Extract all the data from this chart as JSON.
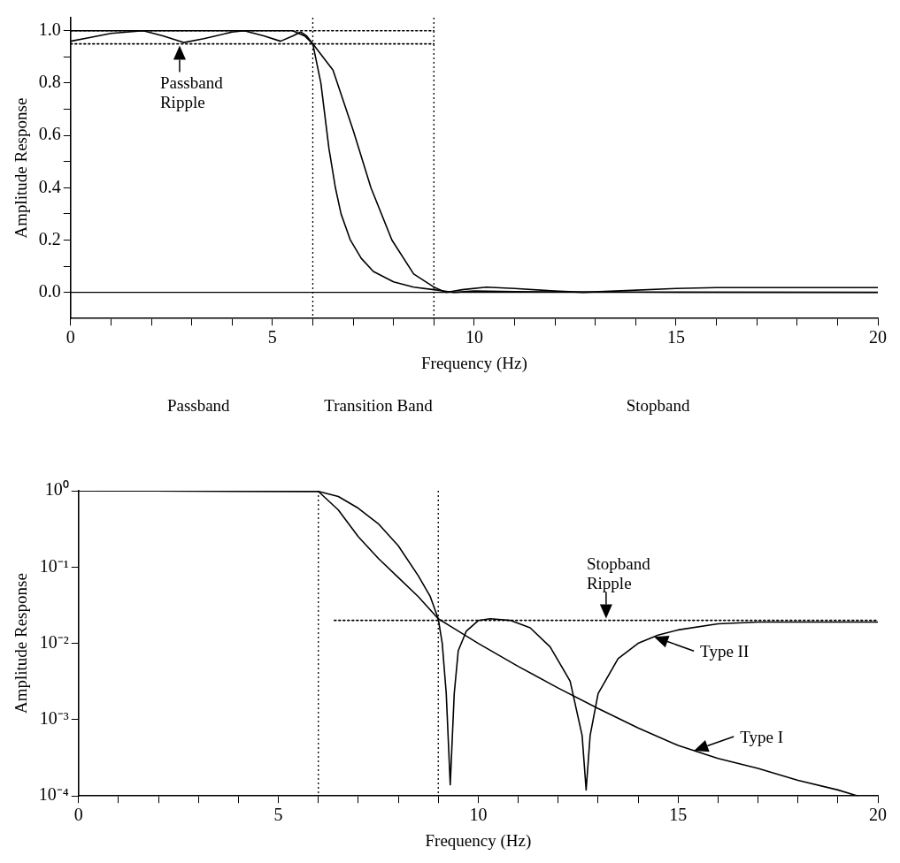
{
  "chart_data": [
    {
      "type": "line",
      "xlabel": "Frequency (Hz)",
      "ylabel": "Amplitude Response",
      "xlim": [
        0,
        20
      ],
      "ylim": [
        -0.1,
        1.05
      ],
      "xticks": [
        0,
        {
          "value": 1,
          "label": null
        },
        {
          "value": 2,
          "label": null
        },
        {
          "value": 3,
          "label": null
        },
        {
          "value": 4,
          "label": null
        },
        5,
        {
          "value": 6,
          "label": null
        },
        {
          "value": 7,
          "label": null
        },
        {
          "value": 8,
          "label": null
        },
        {
          "value": 9,
          "label": null
        },
        10,
        {
          "value": 11,
          "label": null
        },
        {
          "value": 12,
          "label": null
        },
        {
          "value": 13,
          "label": null
        },
        {
          "value": 14,
          "label": null
        },
        15,
        {
          "value": 16,
          "label": null
        },
        {
          "value": 17,
          "label": null
        },
        {
          "value": 18,
          "label": null
        },
        {
          "value": 19,
          "label": null
        },
        20
      ],
      "yticks": [
        {
          "value": 0,
          "label": "0.0"
        },
        {
          "value": 0.1,
          "label": null
        },
        {
          "value": 0.2,
          "label": "0.2"
        },
        {
          "value": 0.3,
          "label": null
        },
        {
          "value": 0.4,
          "label": "0.4"
        },
        {
          "value": 0.5,
          "label": null
        },
        {
          "value": 0.6,
          "label": "0.6"
        },
        {
          "value": 0.7,
          "label": null
        },
        {
          "value": 0.8,
          "label": "0.8"
        },
        {
          "value": 0.9,
          "label": null
        },
        {
          "value": 1,
          "label": "1.0"
        }
      ],
      "grid": false,
      "marker": "none",
      "series": [
        {
          "color": "#000000",
          "x": [
            0,
            0.5,
            1,
            1.8,
            2.3,
            2.8,
            3.3,
            4,
            4.3,
            4.8,
            5.2,
            5.5,
            5.7,
            5.85,
            6,
            6.2,
            6.4,
            6.56,
            6.7,
            6.93,
            7.2,
            7.5,
            8,
            8.5,
            9,
            9.5,
            10,
            11,
            12,
            14,
            20
          ],
          "values": [
            0.96,
            0.975,
            0.99,
            1,
            0.98,
            0.955,
            0.97,
            0.995,
            1,
            0.98,
            0.96,
            0.98,
            0.995,
            0.98,
            0.95,
            0.8,
            0.55,
            0.4,
            0.3,
            0.2,
            0.13,
            0.08,
            0.04,
            0.02,
            0.01,
            0,
            0.005,
            0.003,
            0.002,
            0.001,
            0
          ]
        },
        {
          "color": "#000000",
          "x": [
            0,
            5.5,
            5.8,
            6,
            6.5,
            7,
            7.44,
            7.96,
            8.5,
            9,
            9.3,
            9.7,
            10.3,
            11,
            12,
            12.7,
            13.5,
            15,
            16,
            20
          ],
          "values": [
            1,
            1,
            0.98,
            0.95,
            0.85,
            0.62,
            0.4,
            0.2,
            0.07,
            0.02,
            0,
            0.01,
            0.02,
            0.015,
            0.005,
            0,
            0.005,
            0.015,
            0.018,
            0.018
          ]
        },
        {
          "color": "#000000",
          "line_style": "dotted",
          "x": [
            0,
            9
          ],
          "values": [
            1,
            1
          ]
        },
        {
          "color": "#000000",
          "line_style": "dotted",
          "x": [
            0,
            9
          ],
          "values": [
            0.95,
            0.95
          ]
        }
      ],
      "ref_lines": [
        {
          "axis": "x",
          "value": 6,
          "line_style": "dotted",
          "color": "#000000"
        },
        {
          "axis": "x",
          "value": 9,
          "line_style": "dotted",
          "color": "#000000"
        },
        {
          "axis": "y",
          "value": 0,
          "line_style": "solid",
          "color": "#000000"
        }
      ],
      "annotations": [
        {
          "text": "Passband Ripple",
          "x": 2.7,
          "y": 0.95
        }
      ]
    },
    {
      "type": "line",
      "xlabel": "Frequency (Hz)",
      "ylabel": "Amplitude Response",
      "log": "y",
      "xlim": [
        0,
        20
      ],
      "ylim": [
        0.0001,
        1
      ],
      "xticks": [
        0,
        {
          "value": 1,
          "label": null
        },
        {
          "value": 2,
          "label": null
        },
        {
          "value": 3,
          "label": null
        },
        {
          "value": 4,
          "label": null
        },
        5,
        {
          "value": 6,
          "label": null
        },
        {
          "value": 7,
          "label": null
        },
        {
          "value": 8,
          "label": null
        },
        {
          "value": 9,
          "label": null
        },
        10,
        {
          "value": 11,
          "label": null
        },
        {
          "value": 12,
          "label": null
        },
        {
          "value": 13,
          "label": null
        },
        {
          "value": 14,
          "label": null
        },
        15,
        {
          "value": 16,
          "label": null
        },
        {
          "value": 17,
          "label": null
        },
        {
          "value": 18,
          "label": null
        },
        {
          "value": 19,
          "label": null
        },
        20
      ],
      "yticks": [
        {
          "value": 0.0001,
          "label": "10⁻⁴"
        },
        {
          "value": 0.001,
          "label": "10⁻³"
        },
        {
          "value": 0.01,
          "label": "10⁻²"
        },
        {
          "value": 0.1,
          "label": "10⁻¹"
        },
        {
          "value": 1,
          "label": "10⁰"
        }
      ],
      "grid": false,
      "legend": "right",
      "marker": "none",
      "series": [
        {
          "name": "Type I",
          "color": "#000000",
          "x": [
            0,
            6,
            6.5,
            7,
            7.5,
            8,
            8.5,
            9,
            10,
            11,
            12,
            13,
            14,
            15,
            16,
            17,
            18,
            19,
            19.5
          ],
          "values": [
            1,
            0.98,
            0.56,
            0.25,
            0.13,
            0.073,
            0.041,
            0.021,
            0.01,
            0.005,
            0.0026,
            0.0014,
            0.00078,
            0.00046,
            0.00031,
            0.00023,
            0.00016,
            0.00012,
            0.0001
          ]
        },
        {
          "name": "Type II",
          "color": "#000000",
          "x": [
            0,
            6,
            6.5,
            7,
            7.5,
            8,
            8.5,
            8.8,
            9,
            9.1,
            9.2,
            9.3,
            9.4,
            9.5,
            9.7,
            10,
            10.3,
            10.8,
            11.3,
            11.8,
            12.3,
            12.6,
            12.7,
            12.8,
            13,
            13.5,
            14,
            14.5,
            15,
            16,
            17,
            20
          ],
          "values": [
            1,
            0.98,
            0.84,
            0.59,
            0.37,
            0.19,
            0.077,
            0.041,
            0.021,
            0.01,
            0.0022,
            0.00014,
            0.0022,
            0.008,
            0.0144,
            0.0199,
            0.021,
            0.02,
            0.016,
            0.009,
            0.0032,
            0.00062,
            0.00012,
            0.00062,
            0.0022,
            0.0063,
            0.01,
            0.0128,
            0.015,
            0.018,
            0.019,
            0.019
          ]
        },
        {
          "color": "#000000",
          "line_style": "dotted",
          "x": [
            6.4,
            20
          ],
          "values": [
            0.02,
            0.02
          ]
        }
      ],
      "ref_lines": [
        {
          "axis": "x",
          "value": 6,
          "line_style": "dotted",
          "color": "#000000"
        },
        {
          "axis": "x",
          "value": 9,
          "line_style": "dotted",
          "color": "#000000"
        }
      ],
      "annotations": [
        "Passband",
        "Transition Band",
        "Stopband",
        {
          "text": "Stopband Ripple",
          "x": 13.2,
          "y": 0.02
        }
      ]
    }
  ]
}
